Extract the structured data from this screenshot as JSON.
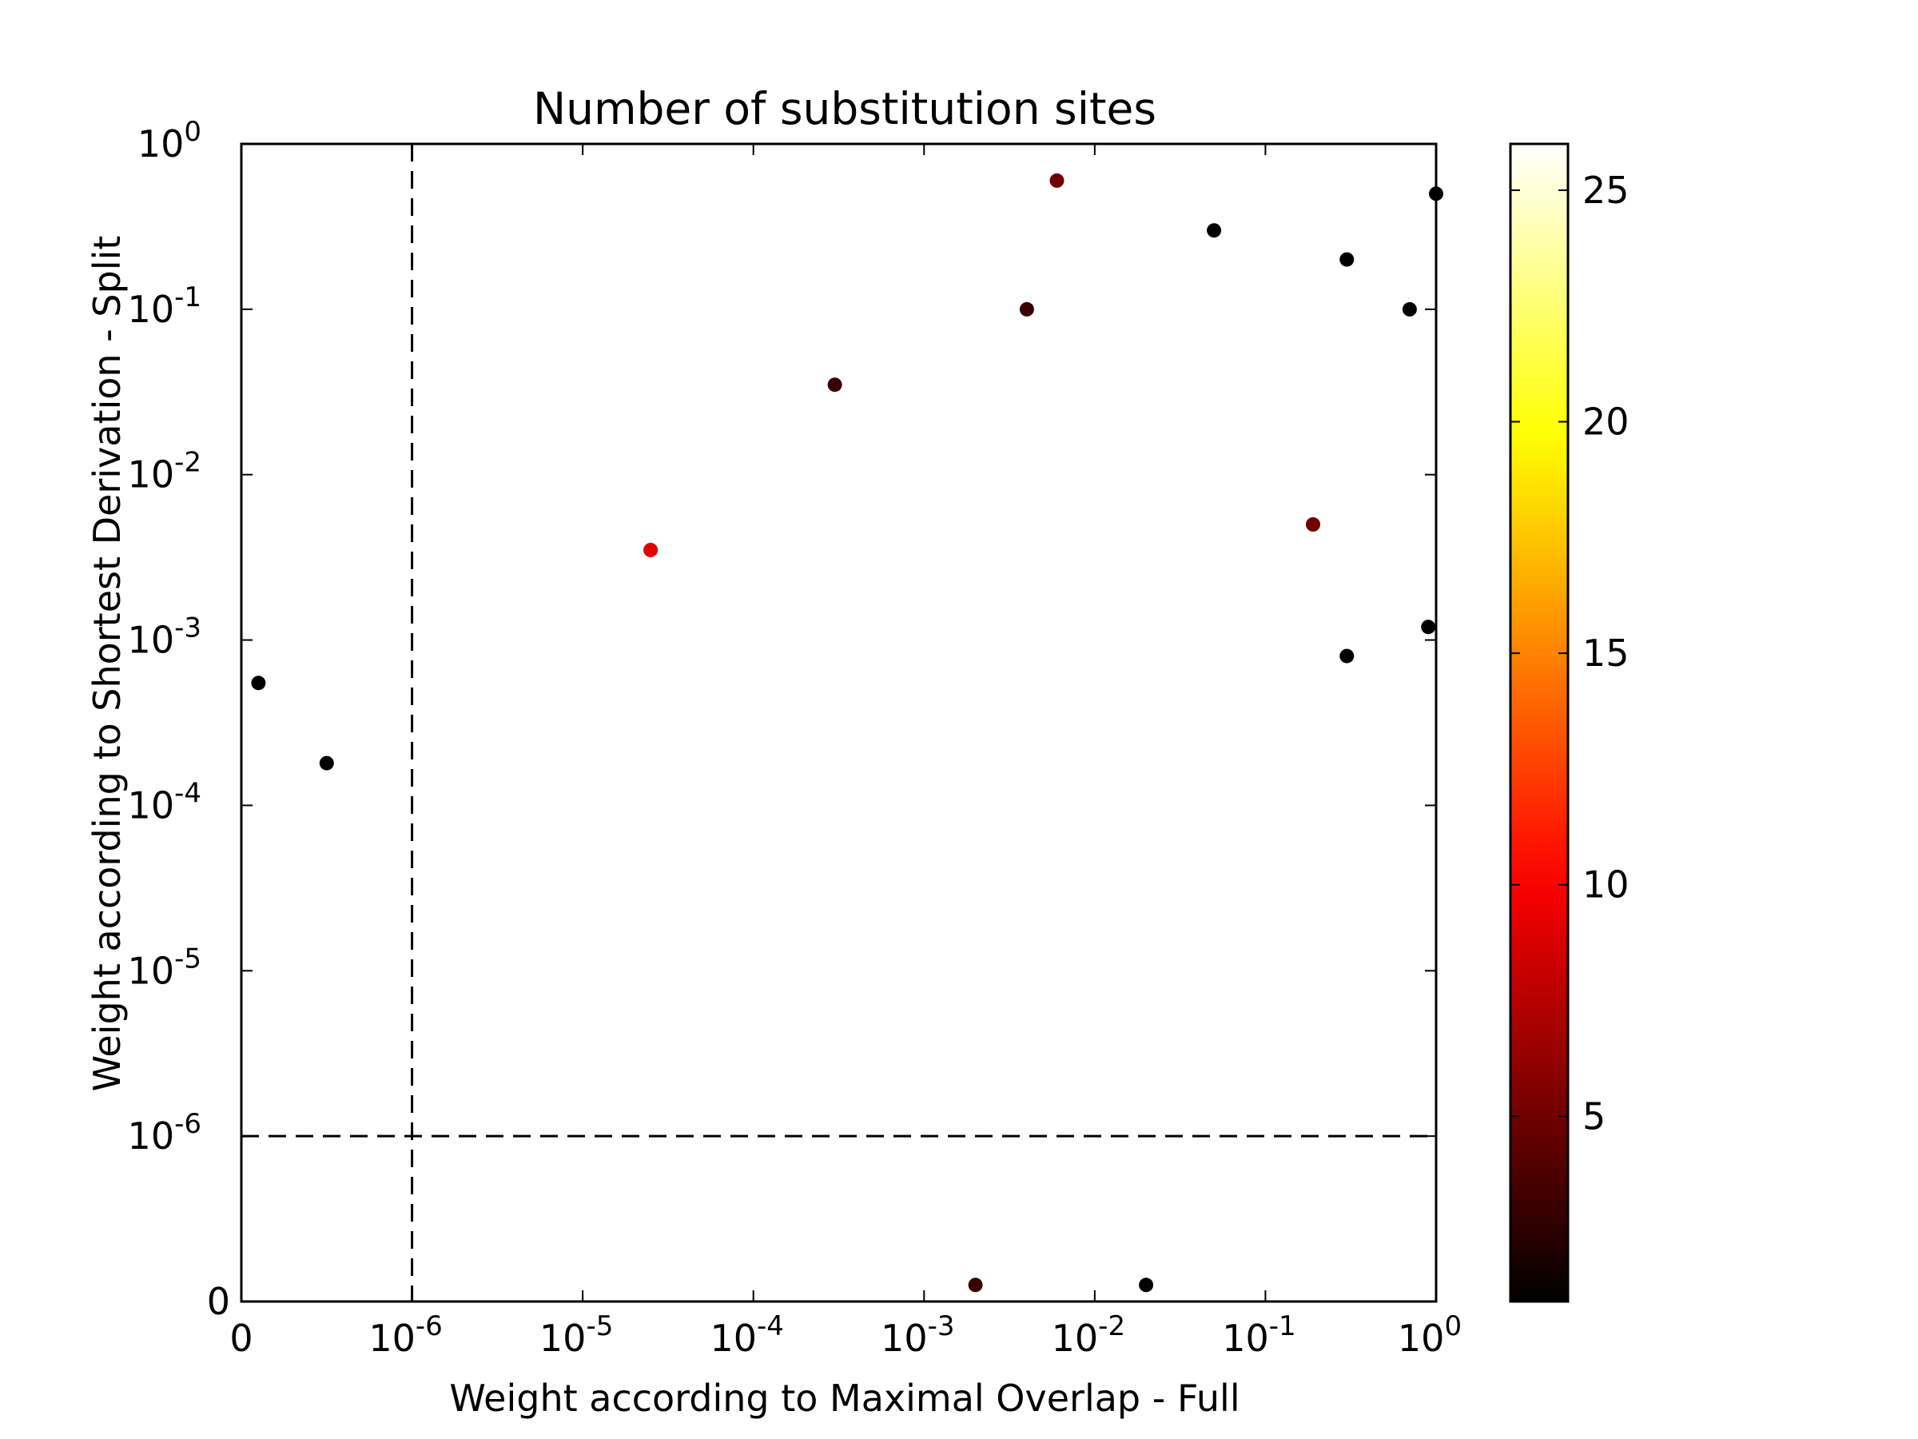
{
  "chart_data": {
    "type": "scatter",
    "title": "Number of substitution sites",
    "xlabel": "Weight according to Maximal Overlap - Full",
    "ylabel": "Weight according to Shortest Derivation - Split",
    "x_scale": "symlog",
    "y_scale": "symlog",
    "x_linthresh": 1e-06,
    "y_linthresh": 1e-06,
    "xlim": [
      0,
      1
    ],
    "ylim": [
      0,
      1
    ],
    "x_ticks": [
      {
        "value": 0,
        "base": "0",
        "exp": ""
      },
      {
        "value": 1e-06,
        "base": "10",
        "exp": "-6"
      },
      {
        "value": 1e-05,
        "base": "10",
        "exp": "-5"
      },
      {
        "value": 0.0001,
        "base": "10",
        "exp": "-4"
      },
      {
        "value": 0.001,
        "base": "10",
        "exp": "-3"
      },
      {
        "value": 0.01,
        "base": "10",
        "exp": "-2"
      },
      {
        "value": 0.1,
        "base": "10",
        "exp": "-1"
      },
      {
        "value": 1,
        "base": "10",
        "exp": "0"
      }
    ],
    "y_ticks": [
      {
        "value": 0,
        "base": "0",
        "exp": ""
      },
      {
        "value": 1e-06,
        "base": "10",
        "exp": "-6"
      },
      {
        "value": 1e-05,
        "base": "10",
        "exp": "-5"
      },
      {
        "value": 0.0001,
        "base": "10",
        "exp": "-4"
      },
      {
        "value": 0.001,
        "base": "10",
        "exp": "-3"
      },
      {
        "value": 0.01,
        "base": "10",
        "exp": "-2"
      },
      {
        "value": 0.1,
        "base": "10",
        "exp": "-1"
      },
      {
        "value": 1,
        "base": "10",
        "exp": "0"
      }
    ],
    "reference_lines": [
      {
        "axis": "x",
        "value": 1e-06,
        "style": "dashed"
      },
      {
        "axis": "y",
        "value": 1e-06,
        "style": "dashed"
      }
    ],
    "grid": false,
    "colormap": "hot",
    "colorbar": {
      "ticks": [
        5,
        10,
        15,
        20,
        25
      ],
      "tick_labels": [
        "5",
        "10",
        "15",
        "20",
        "25"
      ],
      "range": [
        1,
        26
      ]
    },
    "points": [
      {
        "x": 0.006,
        "y": 0.6,
        "c": 5
      },
      {
        "x": 0.19,
        "y": 0.005,
        "c": 5
      },
      {
        "x": 2.5e-05,
        "y": 0.0035,
        "c": 9
      },
      {
        "x": 0.004,
        "y": 0.1,
        "c": 3
      },
      {
        "x": 0.05,
        "y": 0.3,
        "c": 1
      },
      {
        "x": 0.3,
        "y": 0.2,
        "c": 1
      },
      {
        "x": 0.7,
        "y": 0.1,
        "c": 1
      },
      {
        "x": 1.0,
        "y": 0.5,
        "c": 1
      },
      {
        "x": 1e-07,
        "y": 0.00055,
        "c": 1
      },
      {
        "x": 5e-07,
        "y": 0.00018,
        "c": 1
      },
      {
        "x": 0.0003,
        "y": 0.035,
        "c": 3
      },
      {
        "x": 0.002,
        "y": 1e-07,
        "c": 3
      },
      {
        "x": 0.02,
        "y": 1e-07,
        "c": 1
      },
      {
        "x": 0.3,
        "y": 0.0008,
        "c": 1
      },
      {
        "x": 0.9,
        "y": 0.0012,
        "c": 1
      }
    ]
  }
}
